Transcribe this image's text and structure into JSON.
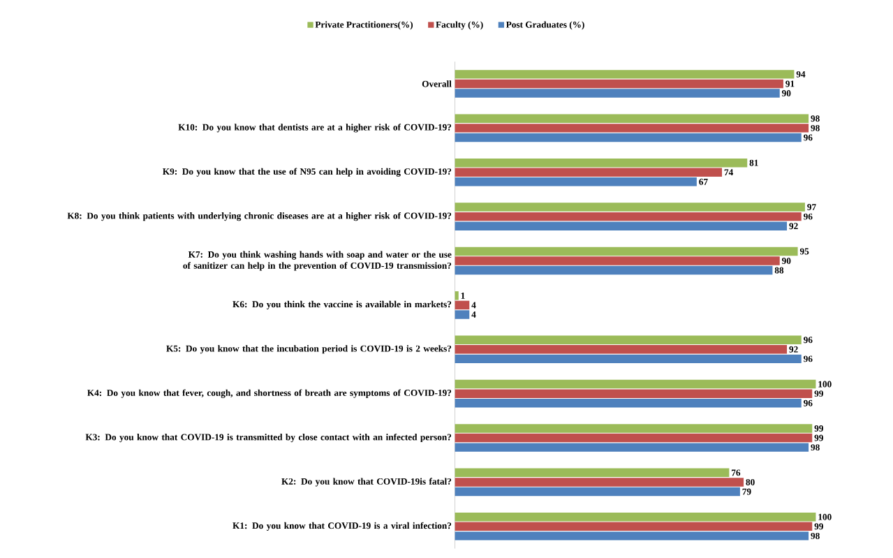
{
  "chart_data": {
    "type": "bar",
    "orientation": "horizontal",
    "legend": "top",
    "data_labels": true,
    "categories": [
      "Overall",
      "K10: Do you know that dentists are at a higher risk of COVID-19?",
      "K9: Do you know that the use of N95 can help in avoiding COVID-19?",
      "K8: Do you think patients with underlying chronic diseases are at a higher risk of COVID-19?",
      "K7: Do you think washing hands with soap and water or the use of sanitizer can help in the prevention of COVID-19 transmission?",
      "K6: Do you think the vaccine is available in markets?",
      "K5: Do you know that the incubation period is COVID-19 is 2 weeks?",
      "K4: Do you know that fever, cough, and shortness of breath are symptoms of COVID-19?",
      "K3: Do you know that COVID-19 is transmitted by close contact with an infected person?",
      "K2: Do you know that COVID-19is fatal?",
      "K1: Do you know that COVID-19 is a viral infection?"
    ],
    "series": [
      {
        "name": "Private Practitioners(%)",
        "color": "#9bbb59",
        "values": [
          94,
          98,
          81,
          97,
          95,
          1,
          96,
          100,
          99,
          76,
          100
        ]
      },
      {
        "name": "Faculty (%)",
        "color": "#c0504d",
        "values": [
          91,
          98,
          74,
          96,
          90,
          4,
          92,
          99,
          99,
          80,
          99
        ]
      },
      {
        "name": "Post Graduates (%)",
        "color": "#4f81bd",
        "values": [
          90,
          96,
          67,
          92,
          88,
          4,
          96,
          96,
          98,
          79,
          98
        ]
      }
    ]
  }
}
